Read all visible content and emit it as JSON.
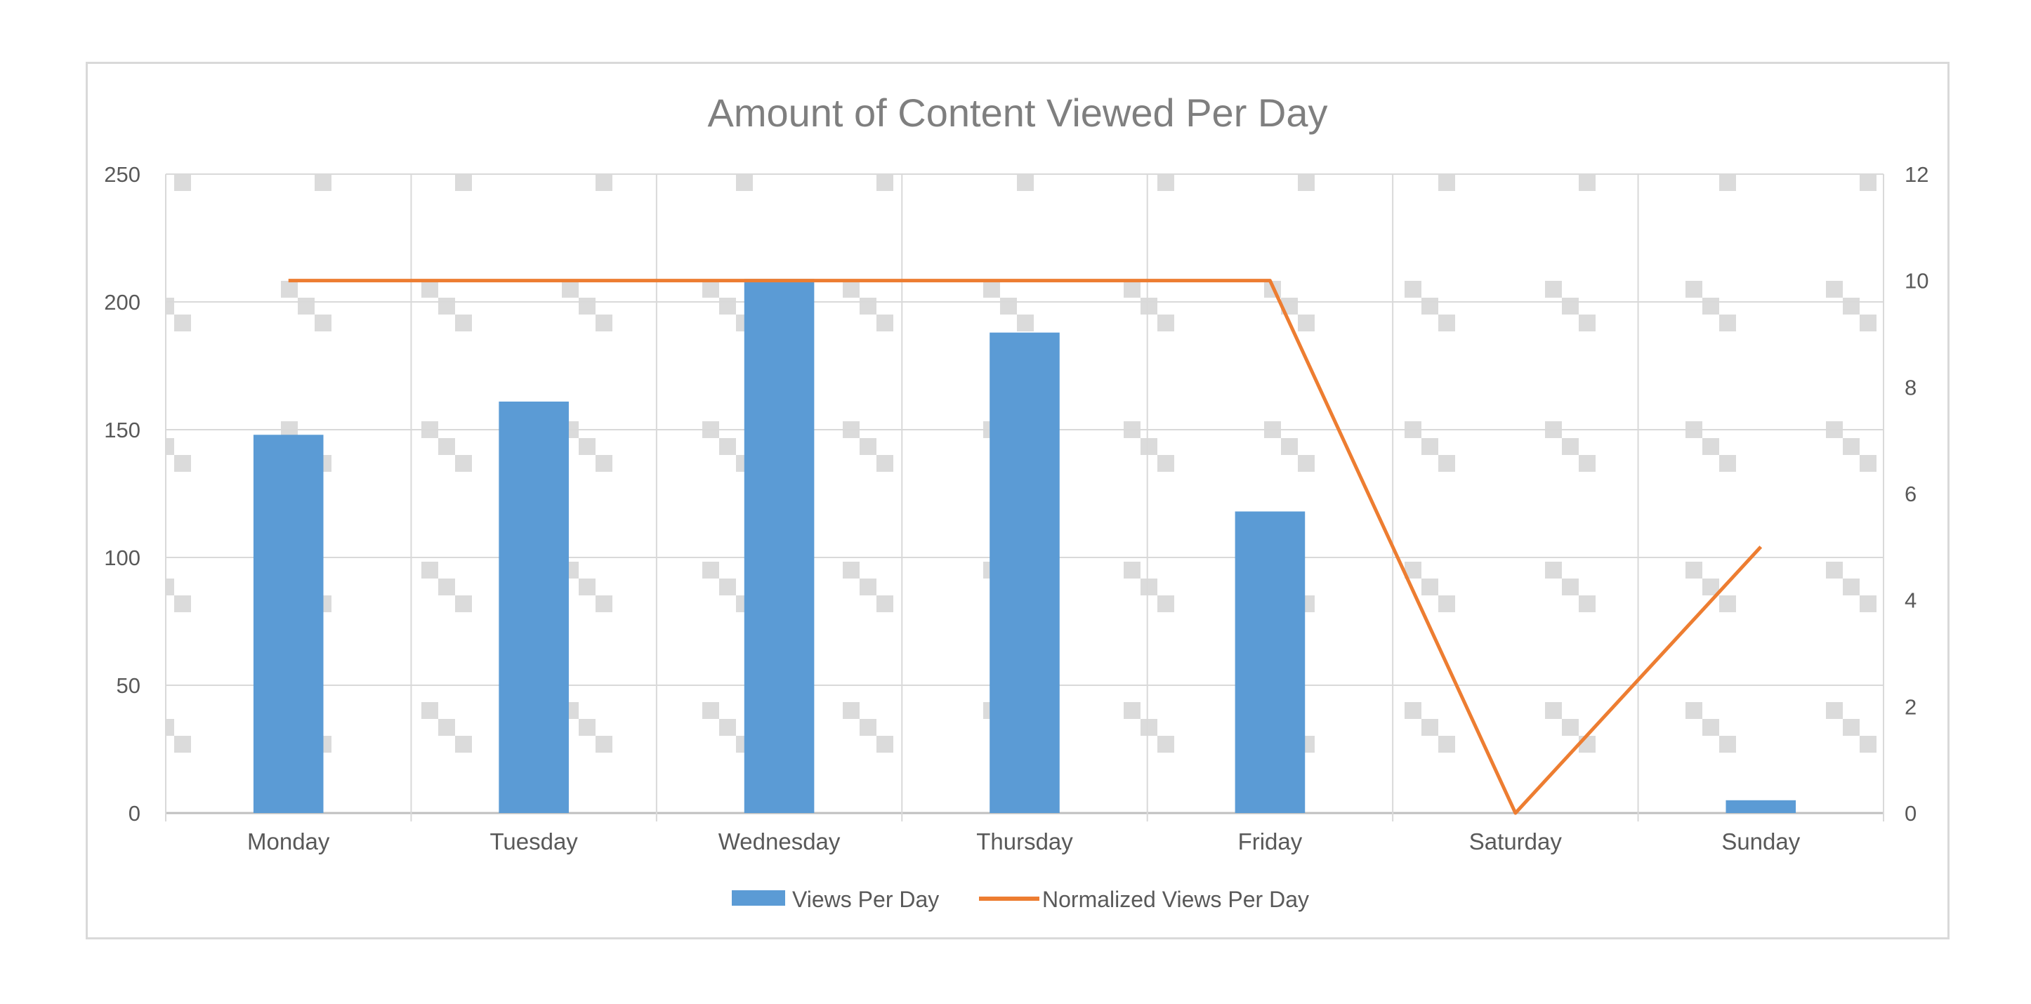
{
  "chart_data": {
    "type": "bar",
    "title": "Amount of Content Viewed Per Day",
    "categories": [
      "Monday",
      "Tuesday",
      "Wednesday",
      "Thursday",
      "Friday",
      "Saturday",
      "Sunday"
    ],
    "series": [
      {
        "name": "Views Per Day",
        "type": "bar",
        "axis": "left",
        "color": "#5b9bd5",
        "values": [
          148,
          161,
          209,
          188,
          118,
          0,
          5
        ]
      },
      {
        "name": "Normalized Views Per Day",
        "type": "line",
        "axis": "right",
        "color": "#ed7d31",
        "values": [
          10,
          10,
          10,
          10,
          10,
          0,
          5
        ]
      }
    ],
    "y_left": {
      "ylim": [
        0,
        250
      ],
      "ticks": [
        "0",
        "50",
        "100",
        "150",
        "200",
        "250"
      ]
    },
    "y_right": {
      "ylim": [
        0,
        12
      ],
      "ticks": [
        "0",
        "2",
        "4",
        "6",
        "8",
        "10",
        "12"
      ]
    },
    "grid": true,
    "legend_position": "bottom",
    "background_pattern": true
  }
}
